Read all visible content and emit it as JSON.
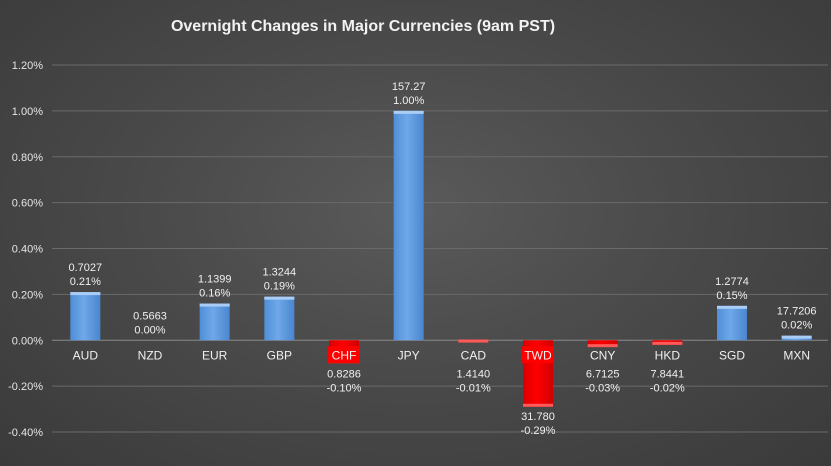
{
  "chart_data": {
    "type": "bar",
    "title": "Overnight Changes in Major Currencies (9am PST)",
    "xlabel": "",
    "ylabel": "",
    "ylim": [
      -0.4,
      1.2
    ],
    "yticks": [
      -0.4,
      -0.2,
      0.0,
      0.2,
      0.4,
      0.6,
      0.8,
      1.0,
      1.2
    ],
    "ytick_labels": [
      "-0.40%",
      "-0.20%",
      "0.00%",
      "0.20%",
      "0.40%",
      "0.60%",
      "0.80%",
      "1.00%",
      "1.20%"
    ],
    "grid": true,
    "legend": "none",
    "categories": [
      "AUD",
      "NZD",
      "EUR",
      "GBP",
      "CHF",
      "JPY",
      "CAD",
      "TWD",
      "CNY",
      "HKD",
      "SGD",
      "MXN"
    ],
    "values": [
      0.21,
      0.0,
      0.16,
      0.19,
      -0.1,
      1.0,
      -0.01,
      -0.29,
      -0.03,
      -0.02,
      0.15,
      0.02
    ],
    "value_labels": [
      "0.21%",
      "0.00%",
      "0.16%",
      "0.19%",
      "-0.10%",
      "1.00%",
      "-0.01%",
      "-0.29%",
      "-0.03%",
      "-0.02%",
      "0.15%",
      "0.02%"
    ],
    "rates": [
      "0.7027",
      "0.5663",
      "1.1399",
      "1.3244",
      "0.8286",
      "157.27",
      "1.4140",
      "31.780",
      "6.7125",
      "7.8441",
      "1.2774",
      "17.7206"
    ],
    "highlight_categories": [
      "CHF",
      "TWD"
    ],
    "colors": {
      "positive": "#6fa8e8",
      "positive_edge": "#a9cdf5",
      "negative": "#ff0000",
      "negative_edge": "#ff5a5a",
      "highlight_label_bg": "#ff0000"
    }
  }
}
